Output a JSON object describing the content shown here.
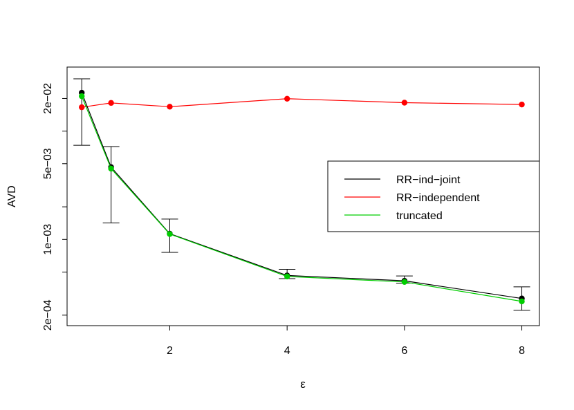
{
  "chart_data": {
    "type": "line",
    "title": "",
    "xlabel": "ε",
    "ylabel": "AVD",
    "xlim": [
      0.25,
      8.3
    ],
    "ylim": [
      0.00016,
      0.039
    ],
    "y_scale": "log",
    "x_ticks": [
      2,
      4,
      6,
      8
    ],
    "y_ticks": [
      {
        "value": 0.0002,
        "label": "2e−04"
      },
      {
        "value": 0.001,
        "label": "1e−03"
      },
      {
        "value": 0.005,
        "label": "5e−03"
      },
      {
        "value": 0.02,
        "label": "2e−02"
      }
    ],
    "y_minor_ticks": [
      0.0005,
      0.002,
      0.01
    ],
    "x": [
      0.5,
      1,
      2,
      4,
      6,
      8
    ],
    "series": [
      {
        "name": "RR−ind−joint",
        "color": "#000000",
        "values": [
          0.0226,
          0.00465,
          0.00113,
          0.000465,
          0.000415,
          0.000285
        ],
        "error_low": [
          0.0074,
          0.00142,
          0.00076,
          0.000435,
          0.000395,
          0.000222
        ],
        "error_high": [
          0.0304,
          0.0072,
          0.00154,
          0.00053,
          0.00046,
          0.000365
        ]
      },
      {
        "name": "RR−independent",
        "color": "#ff0000",
        "values": [
          0.0166,
          0.0182,
          0.0168,
          0.0199,
          0.0183,
          0.0176
        ]
      },
      {
        "name": "truncated",
        "color": "#00cd00",
        "values": [
          0.021,
          0.0045,
          0.00112,
          0.000455,
          0.000405,
          0.000268
        ]
      }
    ],
    "legend_position": "right",
    "grid": false
  }
}
